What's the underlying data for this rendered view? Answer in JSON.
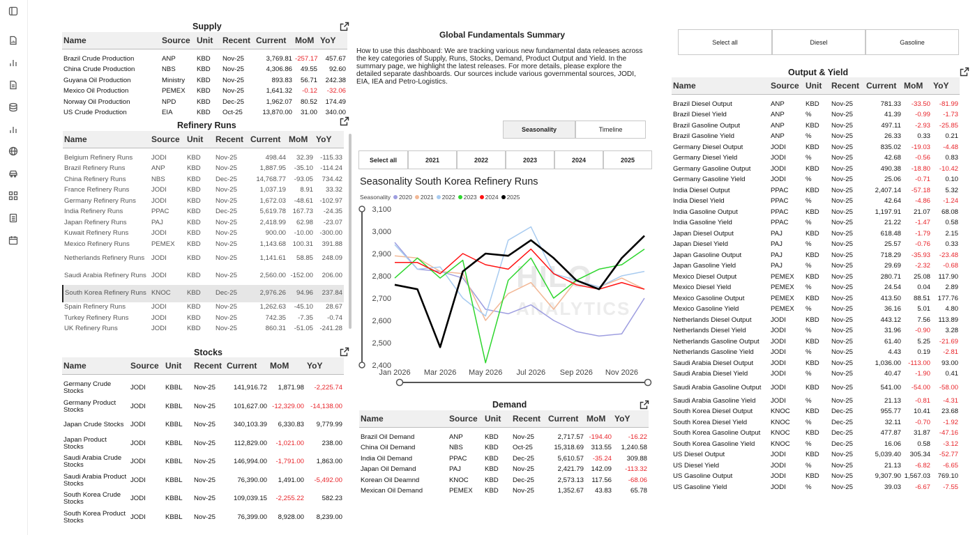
{
  "rail_icons": [
    "sidebar-toggle-icon",
    "document-icon",
    "bar-chart-icon",
    "file-icon",
    "database-icon",
    "bar-chart-icon",
    "globe-icon",
    "car-icon",
    "grid-icon",
    "list-document-icon",
    "calendar-icon"
  ],
  "supply": {
    "title": "Supply",
    "headers": [
      "Name",
      "Source",
      "Unit",
      "Recent",
      "Current",
      "MoM",
      "YoY"
    ],
    "rows": [
      [
        "Brazil Crude Production",
        "ANP",
        "KBD",
        "Nov-25",
        "3,769.81",
        "-257.17",
        "457.67"
      ],
      [
        "China Crude Production",
        "NBS",
        "KBD",
        "Nov-25",
        "4,306.86",
        "49.55",
        "92.60"
      ],
      [
        "Guyana Oil Production",
        "Ministry",
        "KBD",
        "Nov-25",
        "893.83",
        "56.71",
        "242.38"
      ],
      [
        "Mexico Oil Production",
        "PEMEX",
        "KBD",
        "Nov-25",
        "1,641.32",
        "-0.12",
        "-32.06"
      ],
      [
        "Norway Oil Production",
        "NPD",
        "KBD",
        "Dec-25",
        "1,962.07",
        "80.52",
        "174.49"
      ],
      [
        "US Crude Production",
        "EIA",
        "KBD",
        "Oct-25",
        "13,870.00",
        "31.00",
        "340.00"
      ]
    ]
  },
  "refinery": {
    "title": "Refinery Runs",
    "headers": [
      "Name",
      "Source",
      "Unit",
      "Recent",
      "Current",
      "MoM",
      "YoY"
    ],
    "rows": [
      [
        "Belgium Refinery Runs",
        "JODI",
        "KBD",
        "Nov-25",
        "498.44",
        "32.39",
        "-115.33"
      ],
      [
        "Brazil Refinery Runs",
        "ANP",
        "KBD",
        "Nov-25",
        "1,887.95",
        "-35.10",
        "-114.24"
      ],
      [
        "China Refinery Runs",
        "NBS",
        "KBD",
        "Dec-25",
        "14,768.77",
        "-93.05",
        "734.42"
      ],
      [
        "France Refinery Runs",
        "JODI",
        "KBD",
        "Nov-25",
        "1,037.19",
        "8.91",
        "33.32"
      ],
      [
        "Germany Refinery Runs",
        "JODI",
        "KBD",
        "Nov-25",
        "1,672.03",
        "-48.61",
        "-102.97"
      ],
      [
        "India Refinery Runs",
        "PPAC",
        "KBD",
        "Dec-25",
        "5,619.78",
        "167.73",
        "-24.35"
      ],
      [
        "Japan Refinery Runs",
        "PAJ",
        "KBD",
        "Nov-25",
        "2,418.99",
        "62.98",
        "-23.07"
      ],
      [
        "Kuwait Refinery Runs",
        "JODI",
        "KBD",
        "Nov-25",
        "900.00",
        "-10.00",
        "-300.00"
      ],
      [
        "Mexico Refinery Runs",
        "PEMEX",
        "KBD",
        "Nov-25",
        "1,143.68",
        "100.31",
        "391.88"
      ],
      [
        "Netherlands Refinery Runs",
        "JODI",
        "KBD",
        "Nov-25",
        "1,141.61",
        "58.85",
        "248.09"
      ],
      [
        "Saudi Arabia Refinery Runs",
        "JODI",
        "KBD",
        "Nov-25",
        "2,560.00",
        "-152.00",
        "206.00"
      ],
      [
        "South Korea Refinery Runs",
        "KNOC",
        "KBD",
        "Dec-25",
        "2,976.26",
        "94.96",
        "237.84"
      ],
      [
        "Spain Refinery Runs",
        "JODI",
        "KBD",
        "Nov-25",
        "1,262.63",
        "-45.10",
        "28.67"
      ],
      [
        "Turkey Refinery Runs",
        "JODI",
        "KBD",
        "Nov-25",
        "742.35",
        "-7.35",
        "-0.74"
      ],
      [
        "UK Refinery Runs",
        "JODI",
        "KBD",
        "Nov-25",
        "860.31",
        "-51.05",
        "-241.28"
      ]
    ]
  },
  "stocks": {
    "title": "Stocks",
    "headers": [
      "Name",
      "Source",
      "Unit",
      "Recent",
      "Current",
      "MoM",
      "YoY"
    ],
    "rows": [
      [
        "Germany Crude Stocks",
        "JODI",
        "KBBL",
        "Nov-25",
        "141,916.72",
        "1,871.98",
        "-2,225.74"
      ],
      [
        "Germany Product Stocks",
        "JODI",
        "KBBL",
        "Nov-25",
        "101,627.00",
        "-12,329.00",
        "-14,138.00"
      ],
      [
        "Japan Crude Stocks",
        "JODI",
        "KBBL",
        "Nov-25",
        "340,103.39",
        "6,330.83",
        "9,779.99"
      ],
      [
        "Japan Product Stocks",
        "JODI",
        "KBBL",
        "Nov-25",
        "112,829.00",
        "-1,021.00",
        "238.00"
      ],
      [
        "Saudi Arabia Crude Stocks",
        "JODI",
        "KBBL",
        "Nov-25",
        "146,994.00",
        "-1,791.00",
        "1,863.00"
      ],
      [
        "Saudi Arabia Product Stocks",
        "JODI",
        "KBBL",
        "Nov-25",
        "76,390.00",
        "1,491.00",
        "-5,492.00"
      ],
      [
        "South Korea Crude Stocks",
        "JODI",
        "KBBL",
        "Nov-25",
        "109,039.15",
        "-2,255.22",
        "582.23"
      ],
      [
        "South Korea Product Stocks",
        "JODI",
        "KBBL",
        "Nov-25",
        "76,399.00",
        "8,928.00",
        "8,239.00"
      ]
    ]
  },
  "summary": {
    "title": "Global Fundamentals Summary",
    "text": "How to use this dashboard: We are tracking various new fundamental data releases across the key categories of Supply, Runs, Stocks, Demand, Product Output and Yield. In the summary page, we highlight the latest releases. For more details, please explore the detailed separate dashboards. Our sources include various governmental sources, JODI, EIA, IEA and Petro-Logistics."
  },
  "view_toggle": {
    "seasonality": "Seasonality",
    "timeline": "Timeline"
  },
  "year_buttons": [
    "Select all",
    "2021",
    "2022",
    "2023",
    "2024",
    "2025"
  ],
  "product_buttons": [
    "Select all",
    "Diesel",
    "Gasoline"
  ],
  "watermark": {
    "line1": "HILO",
    "line2": "ANALYTICS"
  },
  "chart_data": {
    "type": "line",
    "title": "Seasonality South Korea Refinery Runs",
    "legend_label": "Seasonality",
    "x": [
      "Jan",
      "Feb",
      "Mar",
      "Apr",
      "May",
      "Jun",
      "Jul",
      "Aug",
      "Sep",
      "Oct",
      "Nov",
      "Dec"
    ],
    "x_tick_labels": [
      "Jan 2026",
      "Mar 2026",
      "May 2026",
      "Jul 2026",
      "Sep 2026",
      "Nov 2026"
    ],
    "ylim": [
      2400,
      3100
    ],
    "y_ticks": [
      2400,
      2500,
      2600,
      2700,
      2800,
      2900,
      3000,
      3100
    ],
    "y_tick_labels": [
      "2,400",
      "2,500",
      "2,600",
      "2,700",
      "2,800",
      "2,900",
      "3,000",
      "3,100"
    ],
    "series": [
      {
        "name": "2020",
        "color": "#9e9ee0",
        "values": [
          2950,
          2830,
          2820,
          2790,
          2650,
          2630,
          2670,
          2600,
          2550,
          2530,
          2540,
          2700
        ]
      },
      {
        "name": "2021",
        "color": "#f2b896",
        "values": [
          2890,
          2880,
          2820,
          2810,
          2600,
          2720,
          2770,
          2650,
          2780,
          2750,
          2790,
          2740
        ]
      },
      {
        "name": "2022",
        "color": "#a8cbf0",
        "values": [
          2940,
          2830,
          2840,
          2700,
          2620,
          2960,
          3020,
          2810,
          2780,
          2750,
          2800,
          2820
        ]
      },
      {
        "name": "2023",
        "color": "#2ed62e",
        "values": [
          2790,
          2880,
          2790,
          2870,
          2410,
          2780,
          2880,
          2700,
          2780,
          2830,
          2850,
          2920
        ]
      },
      {
        "name": "2024",
        "color": "#ff1010",
        "values": [
          2860,
          2860,
          2810,
          2900,
          2850,
          2830,
          2920,
          2810,
          2760,
          2740,
          2770,
          2740
        ]
      },
      {
        "name": "2025",
        "color": "#000000",
        "values": [
          2760,
          2740,
          2480,
          2820,
          2900,
          2890,
          2960,
          2880,
          2780,
          2740,
          2880,
          2980
        ]
      }
    ]
  },
  "demand": {
    "title": "Demand",
    "headers": [
      "Name",
      "Source",
      "Unit",
      "Recent",
      "Current",
      "MoM",
      "YoY"
    ],
    "rows": [
      [
        "Brazil Oil Demand",
        "ANP",
        "KBD",
        "Nov-25",
        "2,717.57",
        "-194.40",
        "-16.22"
      ],
      [
        "China Oil Demand",
        "NBS",
        "KBD",
        "Oct-25",
        "15,318.69",
        "313.55",
        "1,240.58"
      ],
      [
        "India Oil Demand",
        "PPAC",
        "KBD",
        "Dec-25",
        "5,610.57",
        "-35.24",
        "309.88"
      ],
      [
        "Japan Oil Demand",
        "PAJ",
        "KBD",
        "Nov-25",
        "2,421.79",
        "142.09",
        "-113.32"
      ],
      [
        "Korean Oil Deamnd",
        "KNOC",
        "KBD",
        "Dec-25",
        "2,573.13",
        "117.56",
        "-68.06"
      ],
      [
        "Mexican Oil Demand",
        "PEMEX",
        "KBD",
        "Nov-25",
        "1,352.67",
        "43.83",
        "65.78"
      ]
    ]
  },
  "output": {
    "title": "Output & Yield",
    "headers": [
      "Name",
      "Source",
      "Unit",
      "Recent",
      "Current",
      "MoM",
      "YoY"
    ],
    "rows": [
      [
        "Brazil Diesel Output",
        "ANP",
        "KBD",
        "Nov-25",
        "781.33",
        "-33.50",
        "-81.99"
      ],
      [
        "Brazil Diesel Yield",
        "ANP",
        "%",
        "Nov-25",
        "41.39",
        "-0.99",
        "-1.73"
      ],
      [
        "Brazil Gasoline Output",
        "ANP",
        "KBD",
        "Nov-25",
        "497.11",
        "-2.93",
        "-25.85"
      ],
      [
        "Brazil Gasoline Yield",
        "ANP",
        "%",
        "Nov-25",
        "26.33",
        "0.33",
        "0.21"
      ],
      [
        "Germany Diesel Output",
        "JODI",
        "KBD",
        "Nov-25",
        "835.02",
        "-19.03",
        "-4.48"
      ],
      [
        "Germany Diesel Yield",
        "JODI",
        "%",
        "Nov-25",
        "42.68",
        "-0.56",
        "0.83"
      ],
      [
        "Germany Gasoline Output",
        "JODI",
        "KBD",
        "Nov-25",
        "490.38",
        "-18.80",
        "-10.42"
      ],
      [
        "Germany Gasoline Yield",
        "JODI",
        "%",
        "Nov-25",
        "25.06",
        "-0.71",
        "0.10"
      ],
      [
        "India Diesel Output",
        "PPAC",
        "KBD",
        "Nov-25",
        "2,407.14",
        "-57.18",
        "5.32"
      ],
      [
        "India Diesel Yield",
        "PPAC",
        "%",
        "Nov-25",
        "42.64",
        "-4.86",
        "-1.24"
      ],
      [
        "India Gasoline Output",
        "PPAC",
        "KBD",
        "Nov-25",
        "1,197.91",
        "21.07",
        "68.08"
      ],
      [
        "India Gasoline Yield",
        "PPAC",
        "%",
        "Nov-25",
        "21.22",
        "-1.47",
        "0.58"
      ],
      [
        "Japan Diesel Output",
        "PAJ",
        "KBD",
        "Nov-25",
        "618.48",
        "-1.79",
        "2.15"
      ],
      [
        "Japan Diesel Yield",
        "PAJ",
        "%",
        "Nov-25",
        "25.57",
        "-0.76",
        "0.33"
      ],
      [
        "Japan Gasoline Output",
        "PAJ",
        "KBD",
        "Nov-25",
        "718.29",
        "-35.93",
        "-23.48"
      ],
      [
        "Japan Gasoline Yield",
        "PAJ",
        "%",
        "Nov-25",
        "29.69",
        "-2.32",
        "-0.68"
      ],
      [
        "Mexico Diesel Output",
        "PEMEX",
        "KBD",
        "Nov-25",
        "280.71",
        "25.08",
        "117.90"
      ],
      [
        "Mexico Diesel Yield",
        "PEMEX",
        "%",
        "Nov-25",
        "24.54",
        "0.04",
        "2.89"
      ],
      [
        "Mexico Gasoline Output",
        "PEMEX",
        "KBD",
        "Nov-25",
        "413.50",
        "88.51",
        "177.76"
      ],
      [
        "Mexico Gasoline Yield",
        "PEMEX",
        "%",
        "Nov-25",
        "36.16",
        "5.01",
        "4.80"
      ],
      [
        "Netherlands Diesel Output",
        "JODI",
        "KBD",
        "Nov-25",
        "443.12",
        "7.56",
        "113.89"
      ],
      [
        "Netherlands Diesel Yield",
        "JODI",
        "%",
        "Nov-25",
        "31.96",
        "-0.90",
        "3.28"
      ],
      [
        "Netherlands Gasoline Output",
        "JODI",
        "KBD",
        "Nov-25",
        "61.40",
        "5.25",
        "-21.69"
      ],
      [
        "Netherlands Gasoline Yield",
        "JODI",
        "%",
        "Nov-25",
        "4.43",
        "0.19",
        "-2.81"
      ],
      [
        "Saudi Arabia Diesel Output",
        "JODI",
        "KBD",
        "Nov-25",
        "1,036.00",
        "-113.00",
        "93.00"
      ],
      [
        "Saudi Arabia Diesel Yield",
        "JODI",
        "%",
        "Nov-25",
        "40.47",
        "-1.90",
        "0.41"
      ],
      [
        "Saudi Arabia Gasoline Output",
        "JODI",
        "KBD",
        "Nov-25",
        "541.00",
        "-54.00",
        "-58.00"
      ],
      [
        "Saudi Arabia Gasoline Yield",
        "JODI",
        "%",
        "Nov-25",
        "21.13",
        "-0.81",
        "-4.31"
      ],
      [
        "South Korea Diesel Output",
        "KNOC",
        "KBD",
        "Dec-25",
        "955.77",
        "10.41",
        "23.68"
      ],
      [
        "South Korea Diesel Yield",
        "KNOC",
        "%",
        "Dec-25",
        "32.11",
        "-0.70",
        "-1.92"
      ],
      [
        "South Korea Gasoline Output",
        "KNOC",
        "KBD",
        "Dec-25",
        "477.87",
        "31.87",
        "-47.16"
      ],
      [
        "South Korea Gasoline Yield",
        "KNOC",
        "%",
        "Dec-25",
        "16.06",
        "0.58",
        "-3.12"
      ],
      [
        "US Diesel Output",
        "JODI",
        "KBD",
        "Nov-25",
        "5,039.40",
        "305.34",
        "-52.77"
      ],
      [
        "US Diesel Yield",
        "JODI",
        "%",
        "Nov-25",
        "21.13",
        "-6.82",
        "-6.65"
      ],
      [
        "US Gasoline Output",
        "JODI",
        "KBD",
        "Nov-25",
        "9,307.90",
        "1,567.03",
        "769.10"
      ],
      [
        "US Gasoline Yield",
        "JODI",
        "%",
        "Nov-25",
        "39.03",
        "-6.67",
        "-7.55"
      ]
    ]
  }
}
